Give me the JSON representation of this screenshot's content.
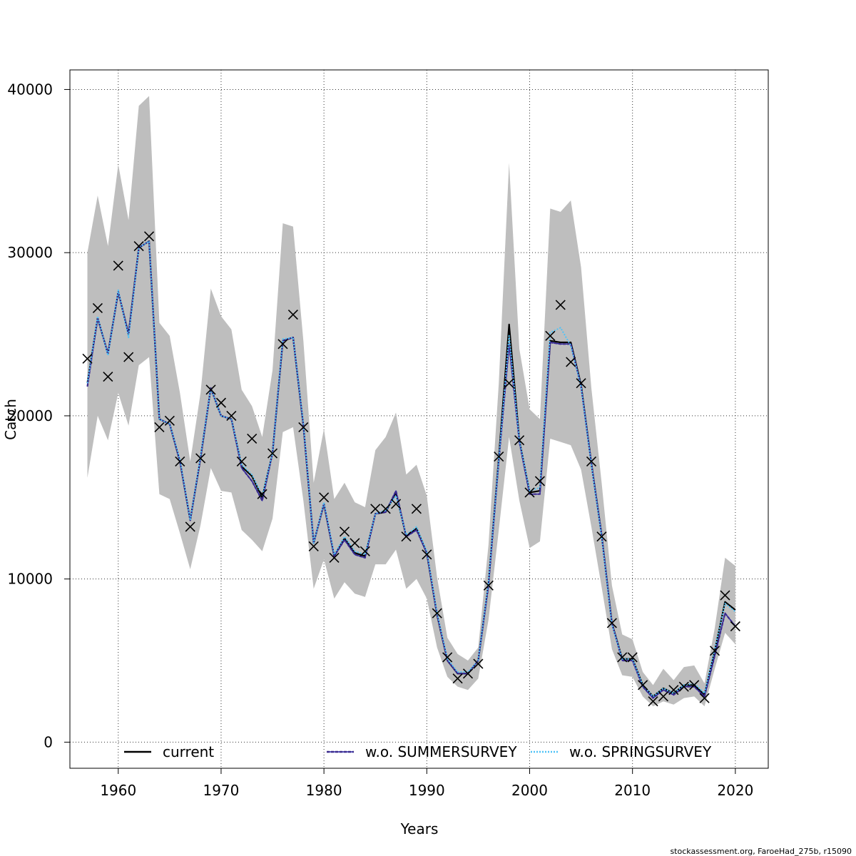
{
  "chart_data": {
    "type": "line",
    "xlabel": "Years",
    "ylabel": "Catch",
    "xlim": [
      1955.3,
      2023.2
    ],
    "ylim": [
      -1600,
      41200
    ],
    "x_ticks": [
      1960,
      1970,
      1980,
      1990,
      2000,
      2010,
      2020
    ],
    "x_tick_labels": [
      "1960",
      "1970",
      "1980",
      "1990",
      "2000",
      "2010",
      "2020"
    ],
    "y_ticks": [
      0,
      10000,
      20000,
      30000,
      40000
    ],
    "y_tick_labels": [
      "0",
      "10000",
      "20000",
      "30000",
      "40000"
    ],
    "grid": true,
    "legend_position": "bottom",
    "footer": "stockassessment.org, FaroeHad_275b, r15090",
    "colors": {
      "band": "#bebebe",
      "current": "#000000",
      "summer": "#3b2a8c",
      "spring": "#4fc3f7",
      "observed": "#000000",
      "grid": "#333333"
    },
    "x": [
      1957,
      1958,
      1959,
      1960,
      1961,
      1962,
      1963,
      1964,
      1965,
      1966,
      1967,
      1968,
      1969,
      1970,
      1971,
      1972,
      1973,
      1974,
      1975,
      1976,
      1977,
      1978,
      1979,
      1980,
      1981,
      1982,
      1983,
      1984,
      1985,
      1986,
      1987,
      1988,
      1989,
      1990,
      1991,
      1992,
      1993,
      1994,
      1995,
      1996,
      1997,
      1998,
      1999,
      2000,
      2001,
      2002,
      2003,
      2004,
      2005,
      2006,
      2007,
      2008,
      2009,
      2010,
      2011,
      2012,
      2013,
      2014,
      2015,
      2016,
      2017,
      2018,
      2019,
      2020
    ],
    "series": [
      {
        "name": "current",
        "style": "solid",
        "values": [
          22000,
          26000,
          23800,
          27600,
          25000,
          30300,
          30700,
          19800,
          19500,
          17200,
          13600,
          17400,
          21700,
          20000,
          19800,
          16900,
          16300,
          15000,
          17700,
          24600,
          24800,
          19400,
          12200,
          14600,
          11400,
          12500,
          11600,
          11400,
          14000,
          14100,
          15300,
          12600,
          13100,
          11600,
          7800,
          5000,
          4200,
          4200,
          5000,
          9700,
          17400,
          25600,
          18500,
          15300,
          15400,
          24600,
          24500,
          24500,
          21900,
          17100,
          12700,
          7300,
          5100,
          5100,
          3500,
          2800,
          3300,
          3000,
          3500,
          3500,
          2900,
          5600,
          8600,
          8100
        ]
      },
      {
        "name": "w.o. SUMMERSURVEY",
        "style": "dashed",
        "values": [
          21800,
          26000,
          23800,
          27600,
          25000,
          30300,
          30700,
          19800,
          19500,
          17200,
          13600,
          17400,
          21700,
          20000,
          19800,
          16800,
          16000,
          14800,
          17700,
          24600,
          24800,
          19400,
          12200,
          14600,
          11400,
          12400,
          11500,
          11300,
          14000,
          14100,
          15400,
          12600,
          13000,
          11600,
          7800,
          5000,
          4200,
          4200,
          5000,
          9600,
          17200,
          24400,
          18400,
          15200,
          15200,
          24500,
          24400,
          24400,
          21800,
          17100,
          12700,
          7300,
          5000,
          5000,
          3400,
          2700,
          3200,
          2900,
          3400,
          3400,
          2800,
          5300,
          7900,
          7100
        ]
      },
      {
        "name": "w.o. SPRINGSURVEY",
        "style": "dotted",
        "values": [
          22000,
          26100,
          23700,
          27700,
          24800,
          30300,
          30700,
          19800,
          19500,
          17300,
          13600,
          17500,
          21700,
          20000,
          19800,
          17000,
          16400,
          15100,
          17700,
          24700,
          24800,
          19500,
          12200,
          14700,
          11500,
          12600,
          11700,
          11500,
          14000,
          14200,
          15100,
          12700,
          13200,
          11700,
          7900,
          5100,
          4300,
          4300,
          5000,
          9800,
          17300,
          24900,
          18500,
          15400,
          15600,
          25100,
          25400,
          24300,
          21800,
          17000,
          12600,
          7200,
          5100,
          5100,
          3500,
          2800,
          3300,
          3000,
          3500,
          3600,
          3000,
          5700,
          8500,
          8000
        ]
      }
    ],
    "band_upper": [
      30000,
      33500,
      30400,
      35400,
      32000,
      39000,
      39600,
      25700,
      24900,
      21400,
      17200,
      21400,
      27800,
      26100,
      25300,
      21600,
      20600,
      18700,
      22800,
      31800,
      31600,
      24600,
      15900,
      19200,
      14900,
      15900,
      14700,
      14400,
      17900,
      18700,
      20200,
      16400,
      17000,
      15100,
      10100,
      6400,
      5400,
      5000,
      5800,
      12100,
      22000,
      35500,
      24100,
      20400,
      19800,
      32700,
      32500,
      33200,
      29100,
      21700,
      15900,
      9600,
      6600,
      6300,
      4300,
      3500,
      4500,
      3800,
      4600,
      4700,
      3600,
      7000,
      11300,
      10800
    ],
    "band_lower": [
      16200,
      20000,
      18500,
      21400,
      19400,
      23100,
      23600,
      15200,
      14900,
      12800,
      10600,
      13300,
      16800,
      15400,
      15300,
      13000,
      12400,
      11700,
      13700,
      19000,
      19300,
      14800,
      9400,
      11200,
      8800,
      9800,
      9100,
      8900,
      10900,
      10900,
      11800,
      9400,
      10000,
      8800,
      5800,
      4000,
      3400,
      3200,
      3900,
      7500,
      13000,
      18700,
      14800,
      11900,
      12300,
      18600,
      18400,
      18200,
      16700,
      13200,
      9500,
      5700,
      4100,
      4000,
      2800,
      2200,
      2500,
      2300,
      2700,
      2800,
      2200,
      4500,
      6700,
      6000
    ],
    "observed_values": [
      23500,
      26600,
      22400,
      29200,
      23600,
      30400,
      31000,
      19300,
      19700,
      17200,
      13200,
      17400,
      21600,
      20800,
      20000,
      17200,
      18600,
      15200,
      17700,
      24400,
      26200,
      19300,
      12000,
      15000,
      11300,
      12900,
      12200,
      11700,
      14300,
      14300,
      14600,
      12600,
      14300,
      11500,
      7900,
      5200,
      3900,
      4200,
      4800,
      9600,
      17500,
      22000,
      18500,
      15300,
      16000,
      24900,
      26800,
      23300,
      22000,
      17200,
      12600,
      7300,
      5200,
      5200,
      3500,
      2500,
      2800,
      3200,
      3400,
      3500,
      2700,
      5600,
      9000,
      7100
    ],
    "legend": [
      {
        "label": "current",
        "series": 0
      },
      {
        "label": "w.o. SUMMERSURVEY",
        "series": 1
      },
      {
        "label": "w.o. SPRINGSURVEY",
        "series": 2
      }
    ]
  }
}
